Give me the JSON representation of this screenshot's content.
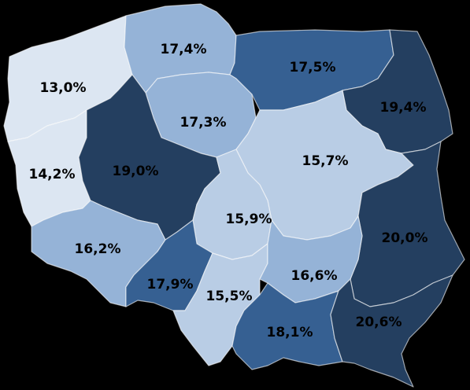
{
  "colors": {
    "lightest": "#dce6f2",
    "light": "#b9cde5",
    "medium": "#95b3d7",
    "dark": "#366092",
    "darkest": "#243f60",
    "background": "#000000"
  },
  "regions": [
    {
      "id": "zachodniopomorskie",
      "value": "13,0%",
      "shade": "lightest"
    },
    {
      "id": "pomorskie",
      "value": "17,4%",
      "shade": "medium"
    },
    {
      "id": "warminsko-mazurskie",
      "value": "17,5%",
      "shade": "dark"
    },
    {
      "id": "podlaskie",
      "value": "19,4%",
      "shade": "darkest"
    },
    {
      "id": "kujawsko-pomorskie",
      "value": "17,3%",
      "shade": "medium"
    },
    {
      "id": "lubuskie",
      "value": "14,2%",
      "shade": "lightest"
    },
    {
      "id": "wielkopolskie",
      "value": "19,0%",
      "shade": "darkest"
    },
    {
      "id": "mazowieckie",
      "value": "15,7%",
      "shade": "light"
    },
    {
      "id": "lodzkie",
      "value": "15,9%",
      "shade": "light"
    },
    {
      "id": "dolnoslaskie",
      "value": "16,2%",
      "shade": "medium"
    },
    {
      "id": "lubelskie",
      "value": "20,0%",
      "shade": "darkest"
    },
    {
      "id": "opolskie",
      "value": "17,9%",
      "shade": "dark"
    },
    {
      "id": "slaskie",
      "value": "15,5%",
      "shade": "light"
    },
    {
      "id": "swietokrzyskie",
      "value": "16,6%",
      "shade": "medium"
    },
    {
      "id": "malopolskie",
      "value": "18,1%",
      "shade": "dark"
    },
    {
      "id": "podkarpackie",
      "value": "20,6%",
      "shade": "darkest"
    }
  ]
}
